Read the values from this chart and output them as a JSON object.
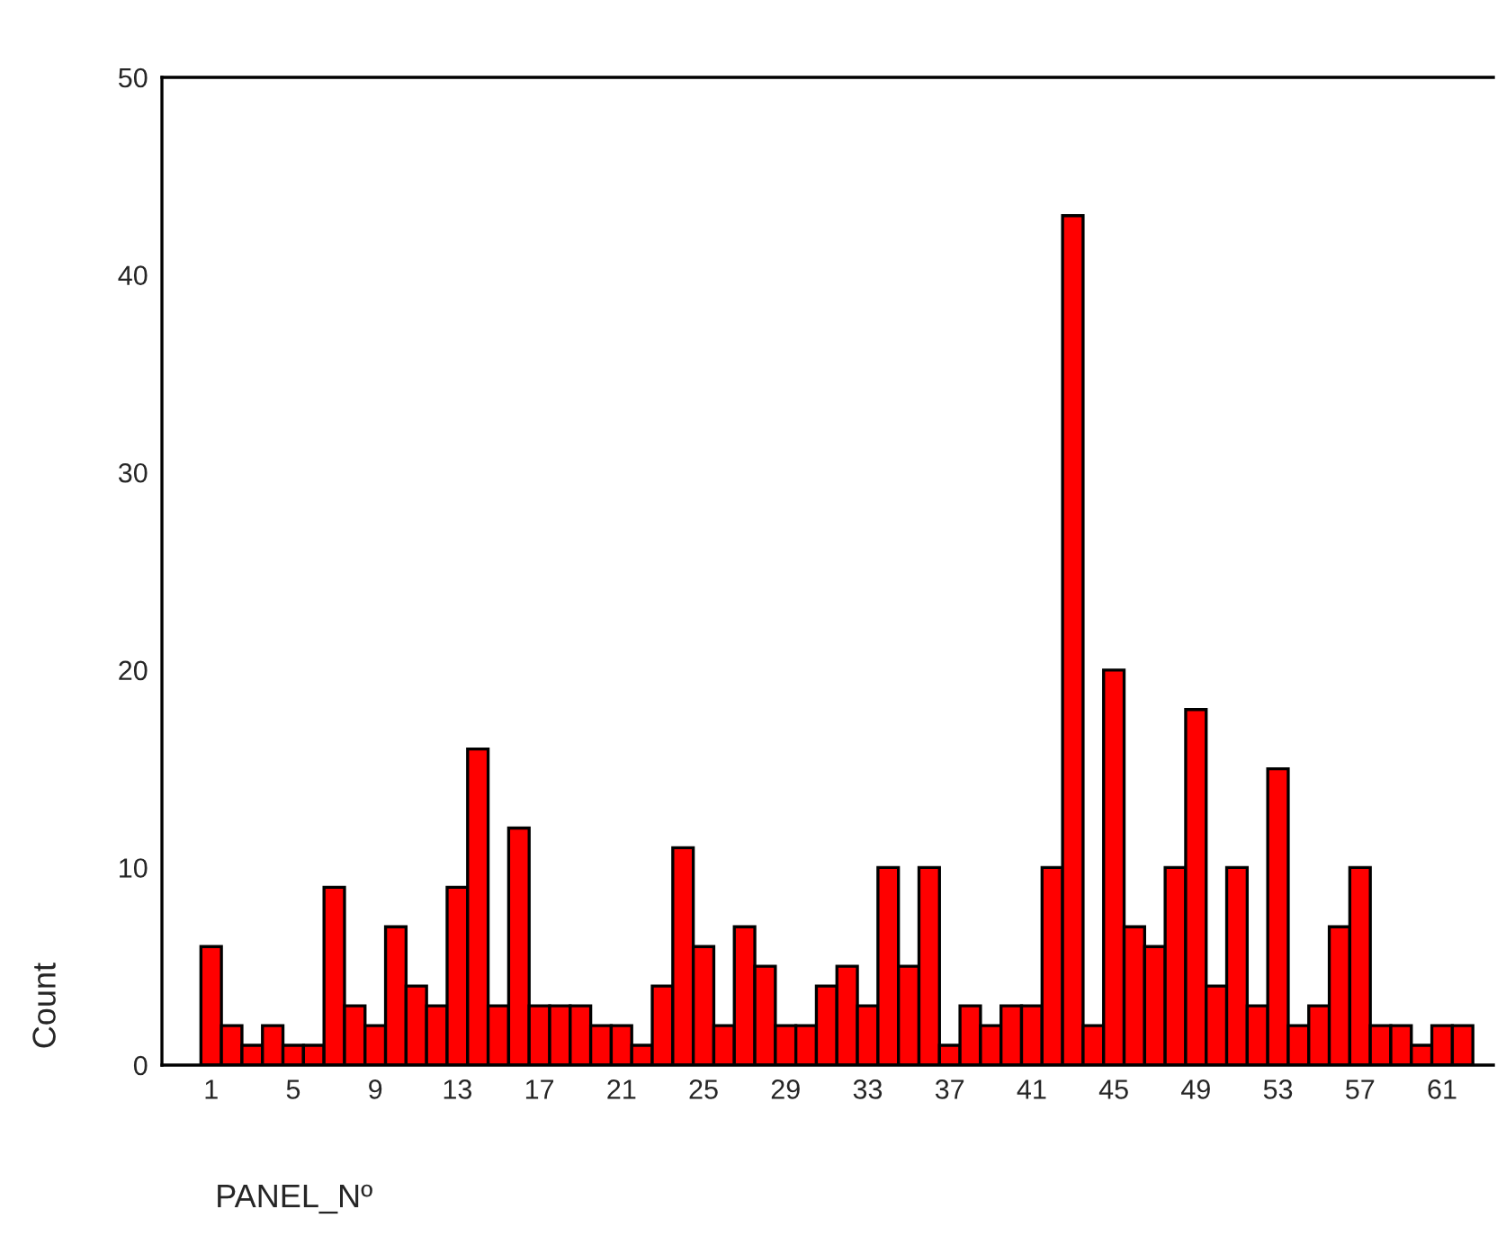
{
  "chart_data": {
    "type": "bar",
    "xlabel": "PANEL_Nº",
    "ylabel": "Count",
    "categories": [
      "1",
      null,
      null,
      null,
      "5",
      null,
      null,
      null,
      "9",
      null,
      null,
      null,
      "13",
      null,
      null,
      null,
      "17",
      null,
      null,
      null,
      "21",
      null,
      null,
      null,
      "25",
      null,
      null,
      null,
      "29",
      null,
      null,
      null,
      "33",
      null,
      null,
      null,
      "37",
      null,
      null,
      null,
      "41",
      null,
      null,
      null,
      "45",
      null,
      null,
      null,
      "49",
      null,
      null,
      null,
      "53",
      null,
      null,
      null,
      "57",
      null,
      null,
      null,
      "61",
      null
    ],
    "values": [
      6,
      2,
      1,
      2,
      1,
      1,
      9,
      3,
      2,
      7,
      4,
      3,
      9,
      16,
      3,
      12,
      3,
      3,
      3,
      2,
      2,
      1,
      4,
      11,
      6,
      2,
      7,
      5,
      2,
      2,
      4,
      5,
      3,
      10,
      5,
      10,
      1,
      3,
      2,
      3,
      3,
      10,
      43,
      2,
      20,
      7,
      6,
      10,
      18,
      4,
      10,
      3,
      15,
      2,
      3,
      7,
      10,
      2,
      2,
      1,
      2,
      2
    ],
    "color": "#ff0000",
    "ylim": [
      0,
      50
    ],
    "yticks": [
      0,
      10,
      20,
      30,
      40,
      50
    ],
    "grid": false,
    "legend": false
  }
}
